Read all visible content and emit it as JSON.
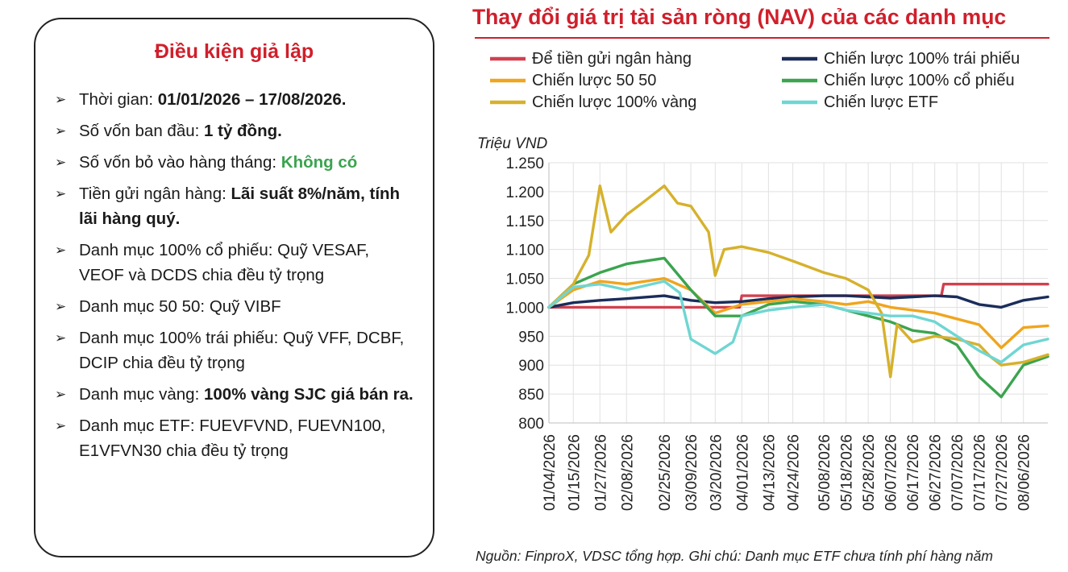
{
  "panel": {
    "title": "Điều kiện giả lập",
    "items": [
      {
        "label": "Thời gian: ",
        "value": "01/01/2026 – 17/08/2026.",
        "rest": ""
      },
      {
        "label": "Số vốn ban đầu: ",
        "value": "1 tỷ đồng.",
        "rest": ""
      },
      {
        "label": "Số vốn bỏ vào hàng tháng: ",
        "value": "Không có",
        "rest": ""
      },
      {
        "label": "Tiền gửi ngân hàng: ",
        "value": "Lãi suất 8%/năm, tính lãi hàng quý.",
        "rest": ""
      },
      {
        "label": "Danh mục 100% cổ phiếu: Quỹ VESAF, VEOF và DCDS chia đều tỷ trọng",
        "value": "",
        "rest": ""
      },
      {
        "label": "Danh mục 50 50: Quỹ VIBF",
        "value": "",
        "rest": ""
      },
      {
        "label": "Danh mục 100% trái phiếu: Quỹ VFF, DCBF, DCIP chia đều tỷ trọng",
        "value": "",
        "rest": ""
      },
      {
        "label": "Danh mục vàng: ",
        "value": "100% vàng SJC giá bán ra.",
        "rest": ""
      },
      {
        "label": "Danh mục ETF: FUEVFVND, FUEVN100, E1VFVN30 chia đều tỷ trọng",
        "value": "",
        "rest": ""
      }
    ],
    "highlight_color": "#3ba44f"
  },
  "source_note": "Nguồn: FinproX, VDSC tổng hợp. Ghi chú: Danh mục ETF chưa tính phí hàng năm",
  "chart_data": {
    "type": "line",
    "title": "Thay đổi giá trị tài sản ròng (NAV) của các danh mục",
    "ylabel": "Triệu VND",
    "ylim": [
      800,
      1250
    ],
    "yticks": [
      800,
      850,
      900,
      950,
      1000,
      1050,
      1100,
      1150,
      1200,
      1250
    ],
    "ytick_labels": [
      "800",
      "850",
      "900",
      "950",
      "1.000",
      "1.050",
      "1.100",
      "1.150",
      "1.200",
      "1.250"
    ],
    "xlim": [
      "2026-01-04",
      "2026-08-17"
    ],
    "xtick_labels": [
      "01/04/2026",
      "01/15/2026",
      "01/27/2026",
      "02/08/2026",
      "02/25/2026",
      "03/09/2026",
      "03/20/2026",
      "04/01/2026",
      "04/13/2026",
      "04/24/2026",
      "05/08/2026",
      "05/18/2026",
      "05/28/2026",
      "06/07/2026",
      "06/17/2026",
      "06/27/2026",
      "07/07/2026",
      "07/17/2026",
      "07/27/2026",
      "08/06/2026"
    ],
    "xticks": [
      "2026-01-04",
      "2026-01-15",
      "2026-01-27",
      "2026-02-08",
      "2026-02-25",
      "2026-03-09",
      "2026-03-20",
      "2026-04-01",
      "2026-04-13",
      "2026-04-24",
      "2026-05-08",
      "2026-05-18",
      "2026-05-28",
      "2026-06-07",
      "2026-06-17",
      "2026-06-27",
      "2026-07-07",
      "2026-07-17",
      "2026-07-27",
      "2026-08-06"
    ],
    "grid": true,
    "legend_position": "top",
    "series": [
      {
        "name": "Để tiền gửi ngân hàng",
        "color": "#d2404f",
        "points": [
          [
            "2026-01-04",
            1000
          ],
          [
            "2026-03-31",
            1000
          ],
          [
            "2026-04-01",
            1020
          ],
          [
            "2026-06-30",
            1020
          ],
          [
            "2026-07-01",
            1040
          ],
          [
            "2026-08-17",
            1040
          ]
        ]
      },
      {
        "name": "Chiến lược 100% trái phiếu",
        "color": "#1a2d5a",
        "points": [
          [
            "2026-01-04",
            1000
          ],
          [
            "2026-01-15",
            1008
          ],
          [
            "2026-01-27",
            1012
          ],
          [
            "2026-02-08",
            1015
          ],
          [
            "2026-02-25",
            1020
          ],
          [
            "2026-03-09",
            1012
          ],
          [
            "2026-03-20",
            1008
          ],
          [
            "2026-04-01",
            1010
          ],
          [
            "2026-04-13",
            1015
          ],
          [
            "2026-04-24",
            1018
          ],
          [
            "2026-05-08",
            1020
          ],
          [
            "2026-05-18",
            1020
          ],
          [
            "2026-05-28",
            1018
          ],
          [
            "2026-06-07",
            1016
          ],
          [
            "2026-06-17",
            1018
          ],
          [
            "2026-06-27",
            1020
          ],
          [
            "2026-07-07",
            1018
          ],
          [
            "2026-07-17",
            1005
          ],
          [
            "2026-07-27",
            1000
          ],
          [
            "2026-08-06",
            1012
          ],
          [
            "2026-08-17",
            1018
          ]
        ]
      },
      {
        "name": "Chiến lược 50 50",
        "color": "#f0a51e",
        "points": [
          [
            "2026-01-04",
            1000
          ],
          [
            "2026-01-15",
            1030
          ],
          [
            "2026-01-27",
            1045
          ],
          [
            "2026-02-08",
            1040
          ],
          [
            "2026-02-25",
            1050
          ],
          [
            "2026-03-09",
            1030
          ],
          [
            "2026-03-20",
            990
          ],
          [
            "2026-04-01",
            1005
          ],
          [
            "2026-04-13",
            1010
          ],
          [
            "2026-04-24",
            1015
          ],
          [
            "2026-05-08",
            1010
          ],
          [
            "2026-05-18",
            1005
          ],
          [
            "2026-05-28",
            1010
          ],
          [
            "2026-06-07",
            1000
          ],
          [
            "2026-06-17",
            995
          ],
          [
            "2026-06-27",
            990
          ],
          [
            "2026-07-07",
            980
          ],
          [
            "2026-07-17",
            970
          ],
          [
            "2026-07-27",
            930
          ],
          [
            "2026-08-06",
            965
          ],
          [
            "2026-08-17",
            968
          ]
        ]
      },
      {
        "name": "Chiến lược 100% cổ phiếu",
        "color": "#3ba44f",
        "points": [
          [
            "2026-01-04",
            1000
          ],
          [
            "2026-01-15",
            1040
          ],
          [
            "2026-01-27",
            1060
          ],
          [
            "2026-02-08",
            1075
          ],
          [
            "2026-02-25",
            1085
          ],
          [
            "2026-03-09",
            1030
          ],
          [
            "2026-03-20",
            985
          ],
          [
            "2026-04-01",
            985
          ],
          [
            "2026-04-13",
            1005
          ],
          [
            "2026-04-24",
            1010
          ],
          [
            "2026-05-08",
            1005
          ],
          [
            "2026-05-18",
            995
          ],
          [
            "2026-05-28",
            985
          ],
          [
            "2026-06-07",
            975
          ],
          [
            "2026-06-17",
            960
          ],
          [
            "2026-06-27",
            955
          ],
          [
            "2026-07-07",
            935
          ],
          [
            "2026-07-17",
            880
          ],
          [
            "2026-07-27",
            845
          ],
          [
            "2026-08-06",
            900
          ],
          [
            "2026-08-17",
            915
          ]
        ]
      },
      {
        "name": "Chiến lược 100% vàng",
        "color": "#d6b12c",
        "points": [
          [
            "2026-01-04",
            1000
          ],
          [
            "2026-01-15",
            1040
          ],
          [
            "2026-01-22",
            1090
          ],
          [
            "2026-01-27",
            1210
          ],
          [
            "2026-02-01",
            1130
          ],
          [
            "2026-02-08",
            1160
          ],
          [
            "2026-02-15",
            1180
          ],
          [
            "2026-02-25",
            1210
          ],
          [
            "2026-03-03",
            1180
          ],
          [
            "2026-03-09",
            1175
          ],
          [
            "2026-03-17",
            1130
          ],
          [
            "2026-03-20",
            1055
          ],
          [
            "2026-03-24",
            1100
          ],
          [
            "2026-04-01",
            1105
          ],
          [
            "2026-04-13",
            1095
          ],
          [
            "2026-04-24",
            1080
          ],
          [
            "2026-05-08",
            1060
          ],
          [
            "2026-05-18",
            1050
          ],
          [
            "2026-05-28",
            1030
          ],
          [
            "2026-06-03",
            990
          ],
          [
            "2026-06-07",
            880
          ],
          [
            "2026-06-10",
            970
          ],
          [
            "2026-06-17",
            940
          ],
          [
            "2026-06-27",
            950
          ],
          [
            "2026-07-07",
            945
          ],
          [
            "2026-07-17",
            935
          ],
          [
            "2026-07-22",
            915
          ],
          [
            "2026-07-27",
            900
          ],
          [
            "2026-08-06",
            905
          ],
          [
            "2026-08-17",
            918
          ]
        ]
      },
      {
        "name": "Chiến lược ETF",
        "color": "#6fd6d2",
        "points": [
          [
            "2026-01-04",
            1000
          ],
          [
            "2026-01-15",
            1035
          ],
          [
            "2026-01-27",
            1040
          ],
          [
            "2026-02-08",
            1030
          ],
          [
            "2026-02-25",
            1045
          ],
          [
            "2026-03-04",
            1025
          ],
          [
            "2026-03-09",
            945
          ],
          [
            "2026-03-20",
            920
          ],
          [
            "2026-03-28",
            940
          ],
          [
            "2026-04-01",
            985
          ],
          [
            "2026-04-13",
            995
          ],
          [
            "2026-04-24",
            1000
          ],
          [
            "2026-05-08",
            1005
          ],
          [
            "2026-05-18",
            995
          ],
          [
            "2026-05-28",
            990
          ],
          [
            "2026-06-07",
            985
          ],
          [
            "2026-06-17",
            985
          ],
          [
            "2026-06-27",
            975
          ],
          [
            "2026-07-07",
            950
          ],
          [
            "2026-07-17",
            925
          ],
          [
            "2026-07-27",
            905
          ],
          [
            "2026-08-06",
            935
          ],
          [
            "2026-08-17",
            945
          ]
        ]
      }
    ]
  }
}
